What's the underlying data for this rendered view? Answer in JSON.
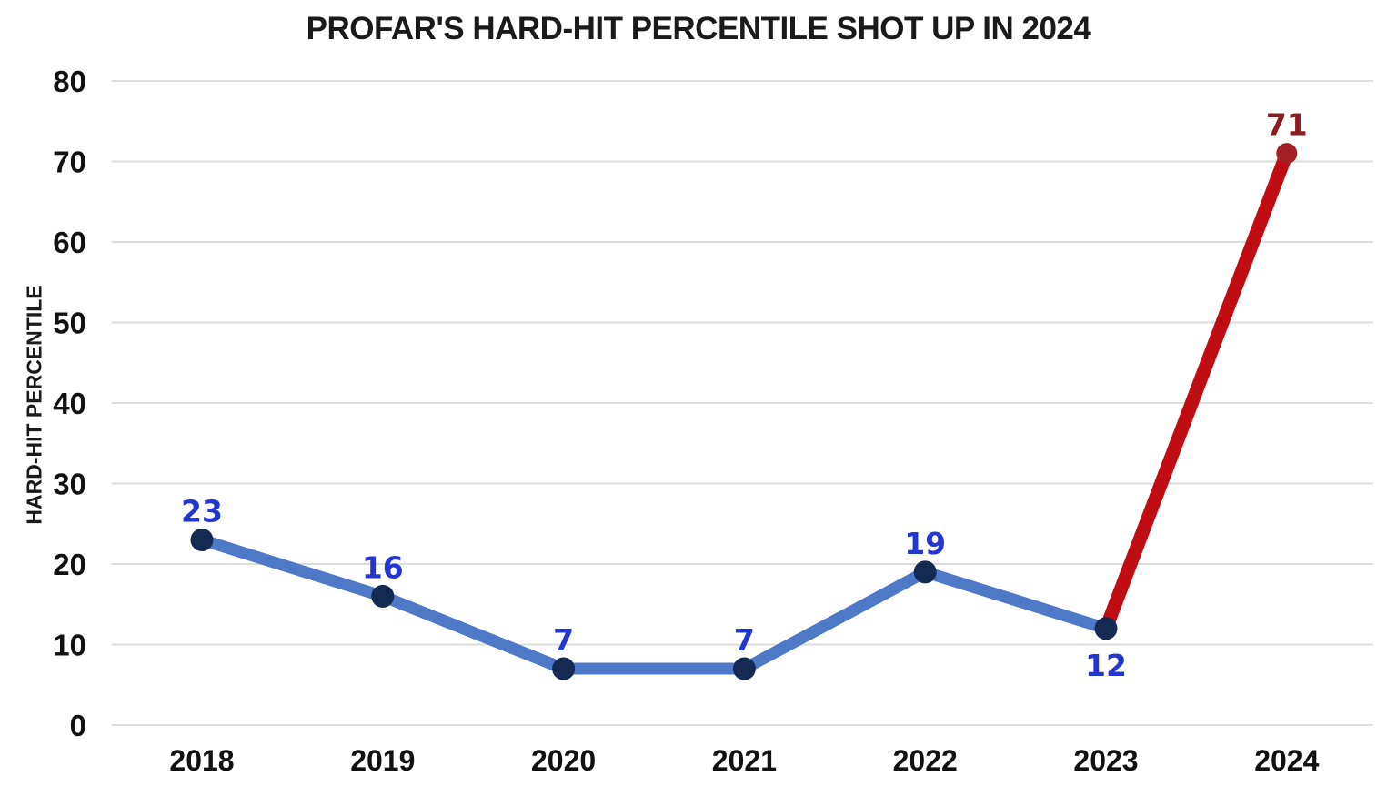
{
  "chart_data": {
    "type": "line",
    "title": "PROFAR'S HARD-HIT PERCENTILE SHOT UP IN 2024",
    "ylabel": "HARD-HIT PERCENTILE",
    "xlabel": "",
    "categories": [
      "2018",
      "2019",
      "2020",
      "2021",
      "2022",
      "2023",
      "2024"
    ],
    "series": [
      {
        "name": "Hard-hit percentile",
        "values": [
          23,
          16,
          7,
          7,
          19,
          12,
          71
        ]
      }
    ],
    "ylim": [
      0,
      80
    ],
    "ytick_step": 10,
    "yticks": [
      0,
      10,
      20,
      30,
      40,
      50,
      60,
      70,
      80
    ],
    "grid": "horizontal-only",
    "legend": "none",
    "highlight": {
      "segment": [
        "2023",
        "2024"
      ],
      "style": "final segment drawn in thick red"
    },
    "label_positions": [
      "above",
      "above",
      "above",
      "above",
      "above",
      "below",
      "above"
    ],
    "colors": {
      "line_blue": "#4d79c7",
      "marker_navy": "#142a52",
      "label_blue": "#2336cf",
      "line_red": "#c00d13",
      "marker_dark_red": "#a32125",
      "label_dark_red": "#8b1d22",
      "gridline": "#dcdcdc",
      "axis_text": "#111111",
      "background": "#ffffff"
    }
  }
}
